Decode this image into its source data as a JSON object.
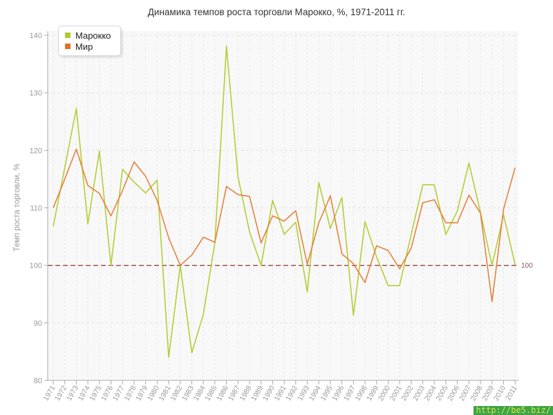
{
  "title": "Динамика темпов роста торговли Марокко, %, 1971-2011 гг.",
  "legend": {
    "items": [
      {
        "label": "Марокко",
        "color": "#aecb2f"
      },
      {
        "label": "Мир",
        "color": "#e2702d"
      }
    ]
  },
  "y_axis": {
    "title": "Темп роста торговли, %",
    "tick_labels": [
      "140",
      "130",
      "120",
      "110",
      "100",
      "90",
      "80"
    ]
  },
  "x_axis": {
    "tick_labels": [
      "1971",
      "1972",
      "1973",
      "1974",
      "1975",
      "1976",
      "1977",
      "1978",
      "1979",
      "1980",
      "1981",
      "1982",
      "1983",
      "1984",
      "1985",
      "1986",
      "1987",
      "1988",
      "1989",
      "1990",
      "1991",
      "1992",
      "1993",
      "1994",
      "1995",
      "1996",
      "1997",
      "1998",
      "1999",
      "2000",
      "2001",
      "2002",
      "2003",
      "2004",
      "2005",
      "2006",
      "2007",
      "2008",
      "2009",
      "2010",
      "2011"
    ]
  },
  "reference_line": {
    "value": 100,
    "label": "100",
    "color": "#994444",
    "label_color": "#8a5a55"
  },
  "watermark": {
    "text": "http://be5.biz/",
    "bg_color": "#3da44a",
    "text_color": "#d7e63f"
  },
  "colors": {
    "plot_bg": "#f8f8f8",
    "grid": "#e4e4e4",
    "axis": "#aaaaaa",
    "tick_text": "#999999",
    "title_text": "#333333",
    "series_morocco": "#b5cc34",
    "series_world": "#e5823b"
  },
  "chart_data": {
    "type": "line",
    "title": "Динамика темпов роста торговли Марокко, %, 1971-2011 гг.",
    "xlabel": "",
    "ylabel": "Темп роста торговли, %",
    "ylim": [
      80,
      140
    ],
    "grid": true,
    "legend_position": "top-left",
    "x": [
      1971,
      1972,
      1973,
      1974,
      1975,
      1976,
      1977,
      1978,
      1979,
      1980,
      1981,
      1982,
      1983,
      1984,
      1985,
      1986,
      1987,
      1988,
      1989,
      1990,
      1991,
      1992,
      1993,
      1994,
      1995,
      1996,
      1997,
      1998,
      1999,
      2000,
      2001,
      2002,
      2003,
      2004,
      2005,
      2006,
      2007,
      2008,
      2009,
      2010,
      2011
    ],
    "series": [
      {
        "name": "Марокко",
        "values": [
          106.8,
          117.0,
          127.3,
          107.2,
          119.9,
          100.0,
          116.7,
          114.5,
          112.6,
          114.8,
          84.0,
          100.0,
          84.8,
          91.5,
          104.0,
          138.1,
          115.4,
          105.8,
          100.0,
          111.3,
          105.4,
          107.5,
          95.4,
          114.4,
          106.4,
          111.8,
          91.3,
          107.6,
          101.5,
          96.5,
          96.5,
          105.4,
          114.0,
          114.0,
          105.4,
          109.5,
          117.8,
          109.2,
          100.0,
          108.8,
          100.1
        ]
      },
      {
        "name": "Мир",
        "values": [
          110.0,
          115.0,
          120.2,
          113.9,
          112.5,
          108.6,
          113.0,
          118.0,
          115.5,
          111.3,
          104.8,
          100.0,
          101.8,
          104.9,
          104.0,
          113.7,
          112.3,
          112.0,
          103.9,
          108.6,
          107.7,
          109.5,
          100.2,
          107.4,
          112.1,
          102.0,
          100.3,
          97.0,
          103.4,
          102.6,
          99.4,
          103.0,
          110.9,
          111.4,
          107.4,
          107.4,
          112.2,
          109.1,
          93.7,
          109.8,
          117.0
        ]
      }
    ],
    "reference_line_y": 100
  }
}
